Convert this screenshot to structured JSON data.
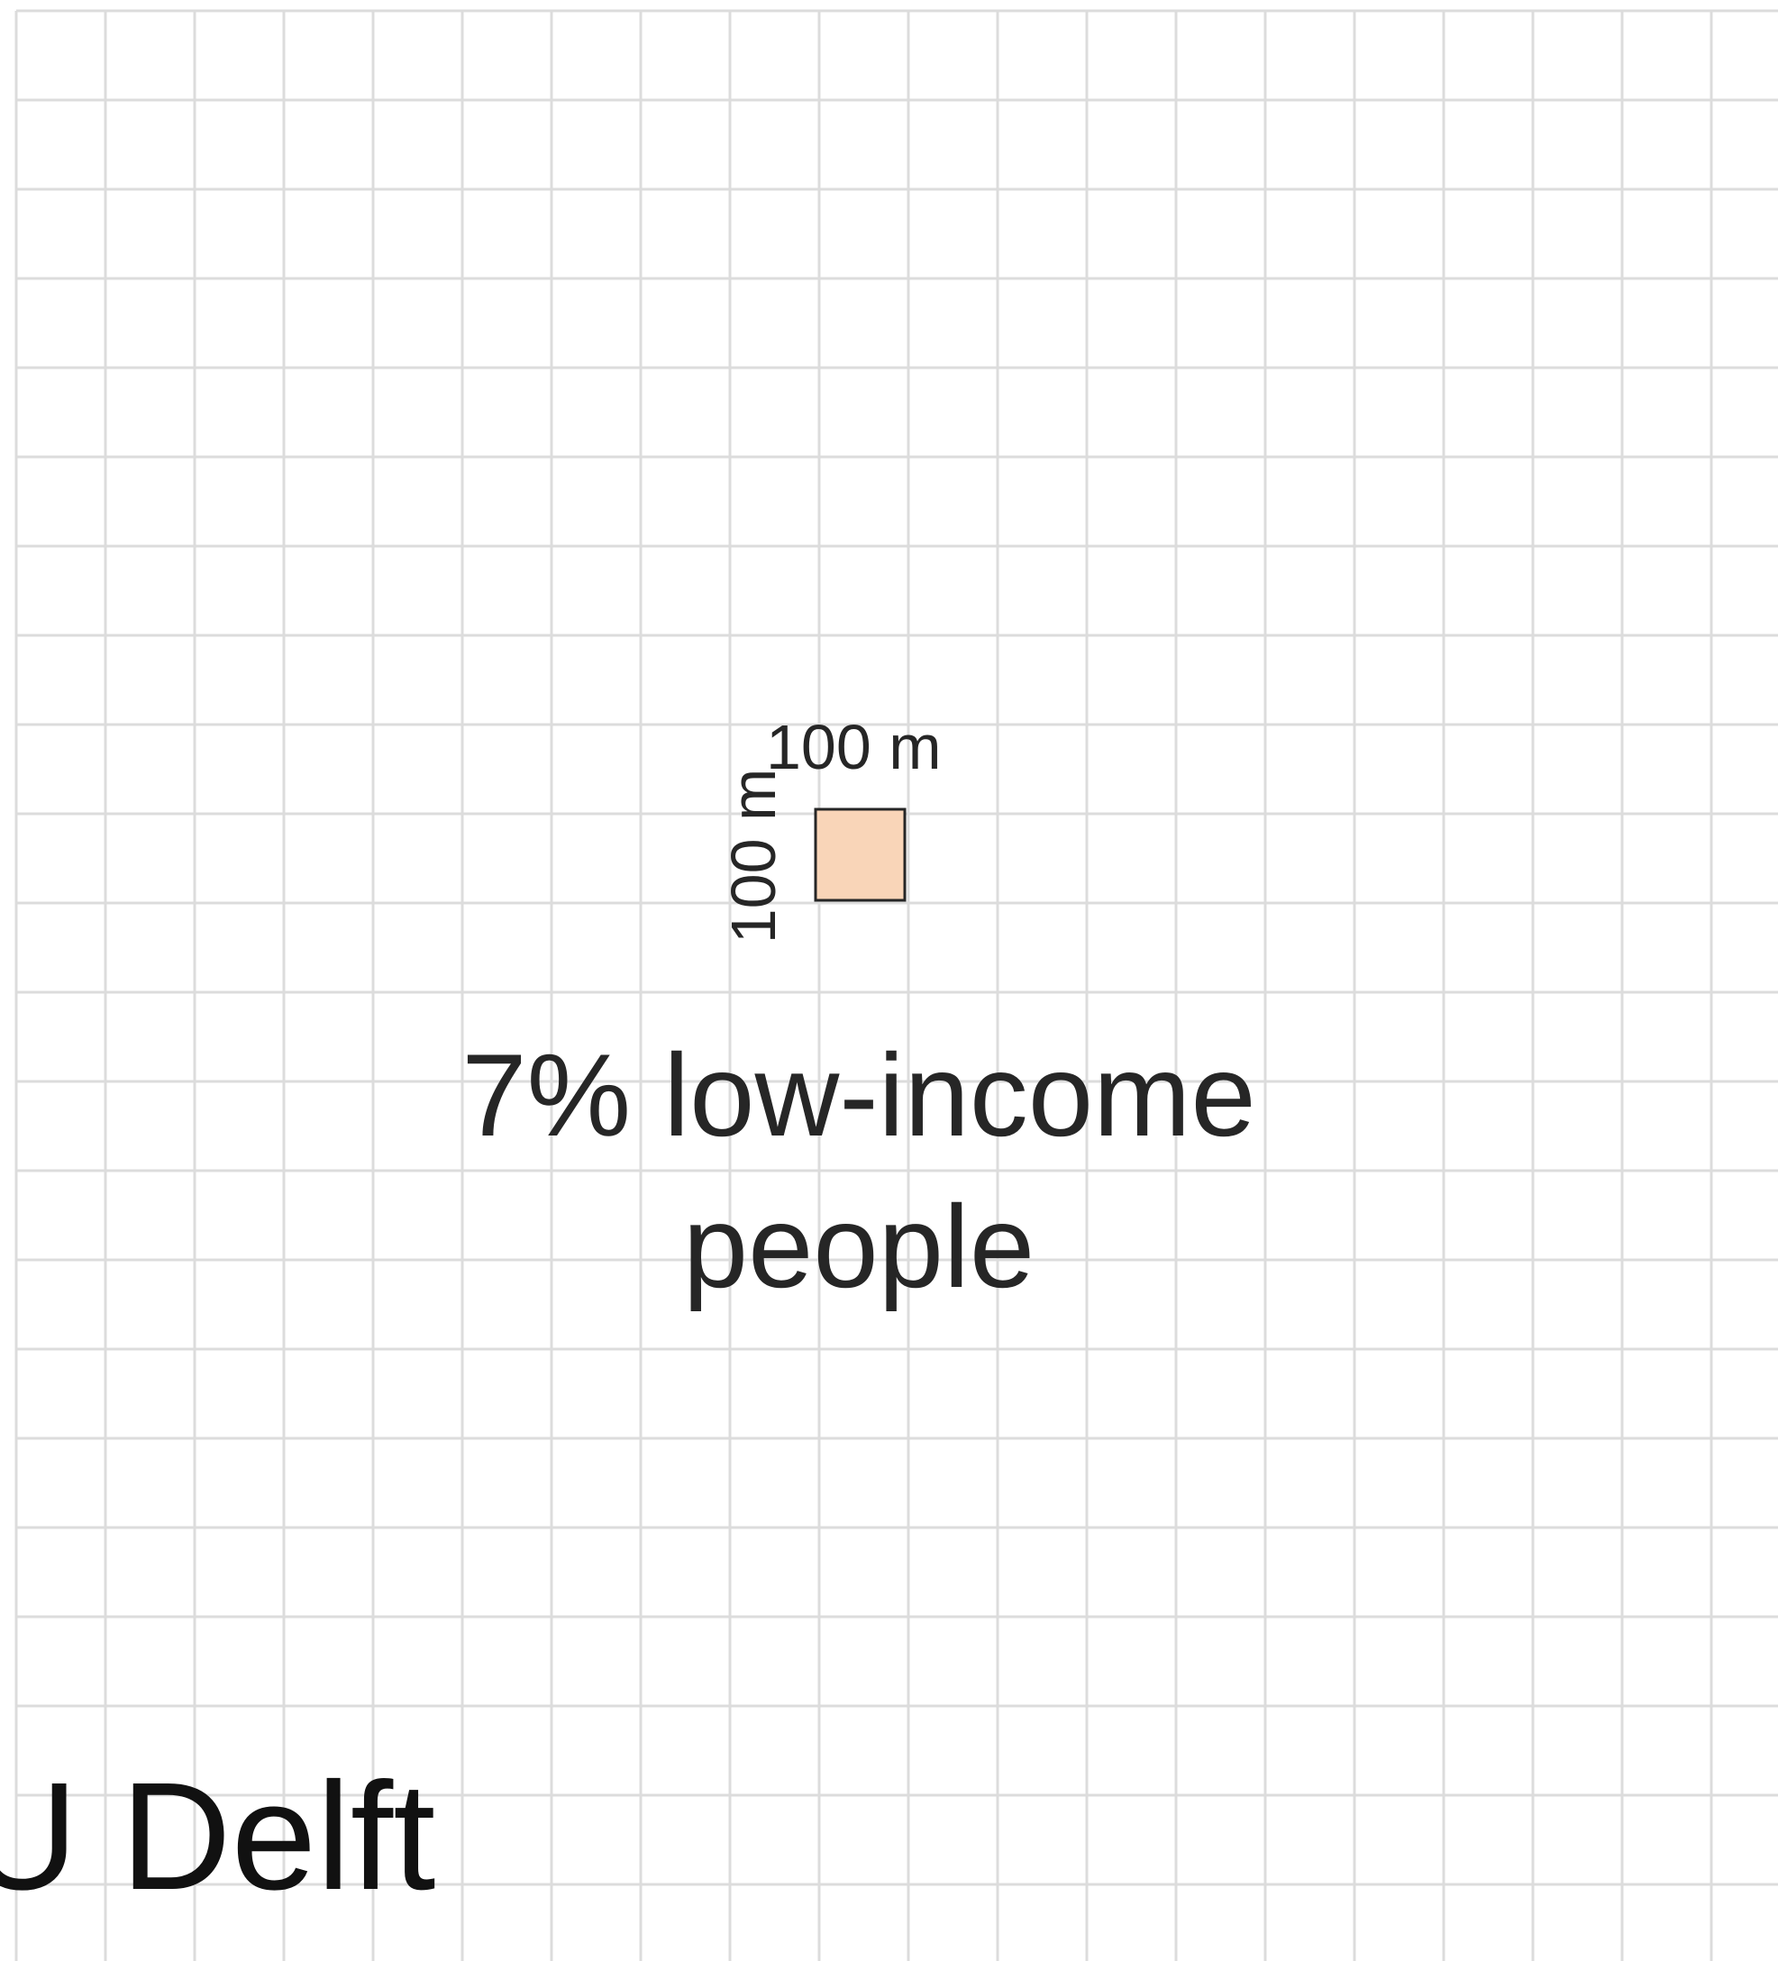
{
  "grid": {
    "show": true,
    "line_color": "#dcdcdc"
  },
  "cell": {
    "fill_color": "#f9d5b8",
    "border_color": "#262626",
    "width_label": "100 m",
    "height_label": "100 m"
  },
  "caption": {
    "line1": "7% low-income",
    "line2": "people"
  },
  "logo": {
    "text": "TU Delft"
  }
}
